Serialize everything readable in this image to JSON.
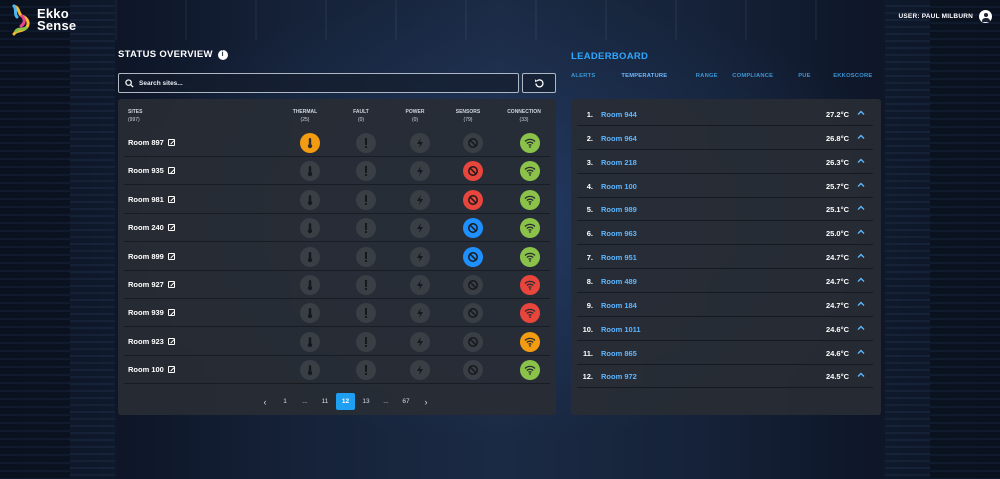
{
  "app": {
    "logo_line1": "Ekko",
    "logo_line2": "Sense",
    "user_label": "USER: PAUL MILBURN"
  },
  "colors": {
    "accent_blue": "#1f9ff2",
    "alert_orange": "#f39c12",
    "alert_red": "#e8453c",
    "ok_green": "#8bc34a",
    "info_blue": "#1e90ff",
    "inactive_gray": "#3a3e45"
  },
  "status": {
    "title": "STATUS OVERVIEW",
    "search_placeholder": "Search sites...",
    "columns": [
      {
        "label": "SITES",
        "count": "(997)"
      },
      {
        "label": "THERMAL",
        "count": "(25)"
      },
      {
        "label": "FAULT",
        "count": "(0)"
      },
      {
        "label": "POWER",
        "count": "(0)"
      },
      {
        "label": "SENSORS",
        "count": "(79)"
      },
      {
        "label": "CONNECTION",
        "count": "(33)"
      }
    ],
    "rows": [
      {
        "name": "Room 897",
        "thermal": "orange",
        "sensors": "gray",
        "connection": "green"
      },
      {
        "name": "Room 935",
        "thermal": "gray",
        "sensors": "red",
        "connection": "green"
      },
      {
        "name": "Room 981",
        "thermal": "gray",
        "sensors": "red",
        "connection": "green"
      },
      {
        "name": "Room 240",
        "thermal": "gray",
        "sensors": "blue",
        "connection": "green"
      },
      {
        "name": "Room 899",
        "thermal": "gray",
        "sensors": "blue",
        "connection": "green"
      },
      {
        "name": "Room 927",
        "thermal": "gray",
        "sensors": "gray",
        "connection": "red"
      },
      {
        "name": "Room 939",
        "thermal": "gray",
        "sensors": "gray",
        "connection": "red"
      },
      {
        "name": "Room 923",
        "thermal": "gray",
        "sensors": "gray",
        "connection": "orange"
      },
      {
        "name": "Room 100",
        "thermal": "gray",
        "sensors": "gray",
        "connection": "green"
      }
    ],
    "pagination": [
      "‹",
      "1",
      "...",
      "11",
      "12",
      "13",
      "...",
      "67",
      "›"
    ],
    "current_page": "12"
  },
  "leaderboard": {
    "title": "LEADERBOARD",
    "tabs": [
      "ALERTS",
      "TEMPERATURE",
      "RANGE",
      "COMPLIANCE",
      "PUE",
      "EKKOSCORE"
    ],
    "active_tab": "TEMPERATURE",
    "rows": [
      {
        "rank": "1.",
        "name": "Room 944",
        "value": "27.2°C"
      },
      {
        "rank": "2.",
        "name": "Room 964",
        "value": "26.8°C"
      },
      {
        "rank": "3.",
        "name": "Room 218",
        "value": "26.3°C"
      },
      {
        "rank": "4.",
        "name": "Room 100",
        "value": "25.7°C"
      },
      {
        "rank": "5.",
        "name": "Room 989",
        "value": "25.1°C"
      },
      {
        "rank": "6.",
        "name": "Room 963",
        "value": "25.0°C"
      },
      {
        "rank": "7.",
        "name": "Room 951",
        "value": "24.7°C"
      },
      {
        "rank": "8.",
        "name": "Room 489",
        "value": "24.7°C"
      },
      {
        "rank": "9.",
        "name": "Room 184",
        "value": "24.7°C"
      },
      {
        "rank": "10.",
        "name": "Room 1011",
        "value": "24.6°C"
      },
      {
        "rank": "11.",
        "name": "Room 865",
        "value": "24.6°C"
      },
      {
        "rank": "12.",
        "name": "Room 972",
        "value": "24.5°C"
      }
    ]
  }
}
